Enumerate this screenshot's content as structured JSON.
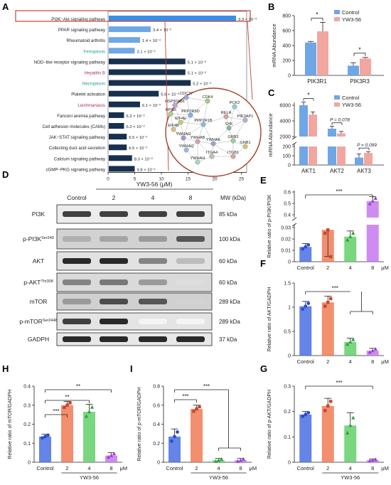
{
  "panels": {
    "A": "A",
    "B": "B",
    "C": "C",
    "D": "D",
    "E": "E",
    "F": "F",
    "G": "G",
    "H": "H",
    "I": "I"
  },
  "common": {
    "control": "Control",
    "drug": "YW3-56",
    "uM": "μM",
    "doses": [
      "2",
      "4",
      "8"
    ]
  },
  "colors": {
    "control": "#6fa6e6",
    "yw": "#f2a6a0",
    "d2": "#ee7b56",
    "d4": "#63d06a",
    "d8": "#c678f0",
    "dblue": "#4a6fe3",
    "navy": "#17304e",
    "bright": "#3a8ee8",
    "light": "#6fa6e6"
  },
  "panelA": {
    "chart_data": {
      "type": "bar",
      "orientation": "horizontal",
      "categories": [
        "PI3K−Akt signaling pathway",
        "PPAR signaling pathway",
        "Rheumatoid arthritis",
        "Ferroptosis",
        "NOD−like receptor signaling pathway",
        "Hepatitis B",
        "Necroptosis",
        "Platelet activation",
        "Leishmaniasis",
        "Fanconi anemia pathway",
        "Cell adhesion molecules (CAMs)",
        "JAK−STAT signaling pathway",
        "Collecting duct acid secretion",
        "Calcium signaling pathway",
        "cGMP−PKG signaling pathway"
      ],
      "values": [
        24,
        8,
        6,
        5,
        14.5,
        14.5,
        15.5,
        9.5,
        6,
        3,
        3,
        3.5,
        3.5,
        4.5,
        5
      ],
      "value_labels": [
        "3.3 × 10⁻³",
        "3.4 × 10⁻²",
        "1.4 × 10⁻²",
        "3.1 × 10⁻²",
        "5.1 × 10⁻²",
        "5.1 × 10⁻²",
        "5.2 × 10⁻²",
        "5.6 × 10⁻²",
        "6.1 × 10⁻²",
        "6.2 × 10⁻²",
        "6.2 × 10⁻²",
        "6.5 × 10⁻²",
        "6.5 × 10⁻²",
        "8.3 × 10⁻²",
        "9.8 × 10⁻²"
      ],
      "bar_colors": [
        "bright",
        "light",
        "light",
        "light",
        "navy",
        "navy",
        "navy",
        "navy",
        "navy",
        "navy",
        "navy",
        "navy",
        "navy",
        "navy",
        "navy"
      ],
      "label_colors": [
        "#222",
        "#222",
        "#222",
        "#1a9aa0",
        "#222",
        "#b0306a",
        "#1a9aa0",
        "#222",
        "#b0306a",
        "#222",
        "#222",
        "#222",
        "#222",
        "#222",
        "#222"
      ],
      "xticks": [
        0,
        5,
        10,
        15,
        20,
        25
      ],
      "xlim": [
        0,
        26
      ]
    },
    "network": [
      "CDC37",
      "CDK4",
      "HSP90AB1",
      "PCK2",
      "RPS6",
      "PPP2R5D",
      "RELA",
      "PIK3AP1",
      "EIF4E",
      "PPP2R1B",
      "EIF4B",
      "SYK",
      "YWHAG",
      "YWHAB",
      "GRB2",
      "YWHAE",
      "GNB1",
      "YWHAQ",
      "ITGA4",
      "ITGB1",
      "YWHAH"
    ]
  },
  "panelB": {
    "chart_data": {
      "type": "bar",
      "ylabel": "mRNA Abundance",
      "categories": [
        "PIK3R1",
        "PIK3R3"
      ],
      "series": [
        {
          "name": "Control",
          "values": [
            440,
            130
          ],
          "err": [
            15,
            40
          ]
        },
        {
          "name": "YW3-56",
          "values": [
            590,
            225
          ],
          "err": [
            120,
            15
          ]
        }
      ],
      "ylim": [
        0,
        800
      ],
      "yticks": [
        0,
        200,
        400,
        600,
        800
      ]
    },
    "sig": [
      "*",
      "*"
    ]
  },
  "panelC": {
    "chart_data": {
      "type": "bar",
      "ylabel": "mRNA Abundance",
      "categories": [
        "AKT1",
        "AKT2",
        "AKT3"
      ],
      "series": [
        {
          "name": "Control",
          "values": [
            6000,
            3000,
            80
          ],
          "err": [
            400,
            300,
            40
          ]
        },
        {
          "name": "YW3-56",
          "values": [
            4800,
            2400,
            130
          ],
          "err": [
            350,
            250,
            15
          ]
        }
      ],
      "yticks": [
        0,
        100,
        200,
        2000,
        4000,
        6000
      ]
    },
    "sig": [
      "*",
      "P = 0.078",
      "P = 0.099"
    ]
  },
  "panelD": {
    "header": "YW3-56 (μM)",
    "columns": [
      "Control",
      "2",
      "4",
      "8"
    ],
    "mw_header": "MW (kDa)",
    "rows": [
      {
        "label": "PI3K",
        "sup": "",
        "mw": "85 kDa",
        "bands": [
          0.85,
          0.85,
          0.85,
          0.85
        ],
        "bg": "#ececec"
      },
      {
        "label": "p-PI3K",
        "sup": "Ser249",
        "mw": "100 kDa",
        "bands": [
          0.35,
          0.4,
          0.45,
          0.75
        ],
        "bg": "#d2d2d2"
      },
      {
        "label": "AKT",
        "sup": "",
        "mw": "60 kDa",
        "bands": [
          0.95,
          0.95,
          0.55,
          0.3
        ],
        "bg": "#e2e2e2"
      },
      {
        "label": "p-AKT",
        "sup": "Thr308",
        "mw": "60 kDa",
        "bands": [
          0.55,
          0.6,
          0.45,
          0.15
        ],
        "bg": "#dadada"
      },
      {
        "label": "mTOR",
        "sup": "",
        "mw": "289 kDa",
        "bands": [
          0.45,
          0.8,
          0.75,
          0.2
        ],
        "bg": "#d0d0d0"
      },
      {
        "label": "p-mTOR",
        "sup": "Ser2448",
        "mw": "289 kDa",
        "bands": [
          0.85,
          0.95,
          0.05,
          0.05
        ],
        "bg": "#e4e4e4"
      },
      {
        "label": "GADPH",
        "sup": "",
        "mw": "37 kDa",
        "bands": [
          0.95,
          0.95,
          0.95,
          0.95
        ],
        "bg": "#e8e8e8"
      }
    ]
  },
  "panelE": {
    "chart_data": {
      "type": "bar",
      "ylabel": "Relative ratio of p-PI3K/PI3K",
      "values": [
        0.013,
        0.028,
        0.022,
        0.52
      ],
      "err": [
        0.003,
        0.005,
        0.005,
        0.04
      ],
      "yticks_low": [
        0,
        0.01,
        0.02,
        0.03
      ],
      "yticks_high": [
        0.4,
        0.5,
        0.6
      ]
    },
    "sig": "***"
  },
  "panelF": {
    "chart_data": {
      "type": "bar",
      "ylabel": "Relative ratio of AKT/GADPH",
      "values": [
        1.02,
        1.1,
        0.28,
        0.1
      ],
      "err": [
        0.1,
        0.13,
        0.08,
        0.05
      ],
      "ylim": [
        0,
        1.5
      ],
      "yticks": [
        0,
        0.5,
        1.0,
        1.5
      ]
    },
    "sig": "***"
  },
  "panelG": {
    "chart_data": {
      "type": "bar",
      "ylabel": "Relative ratio of p-AKT/GADPH",
      "values": [
        0.188,
        0.222,
        0.145,
        0.008
      ],
      "err": [
        0.012,
        0.03,
        0.05,
        0.005
      ],
      "ylim": [
        0,
        0.3
      ],
      "yticks": [
        0,
        0.1,
        0.2,
        0.3
      ]
    },
    "sig": "***"
  },
  "panelH": {
    "chart_data": {
      "type": "bar",
      "ylabel": "Relative ratio of mTOR/GADPH",
      "values": [
        0.135,
        0.3,
        0.265,
        0.035
      ],
      "err": [
        0.012,
        0.02,
        0.04,
        0.015
      ],
      "ylim": [
        0,
        0.4
      ],
      "yticks": [
        0,
        0.1,
        0.2,
        0.3,
        0.4
      ]
    },
    "sig": [
      "***",
      "**",
      "**"
    ]
  },
  "panelI": {
    "chart_data": {
      "type": "bar",
      "ylabel": "Relative ratio of p-mTOR/GADPH",
      "values": [
        0.27,
        0.56,
        0.02,
        0.02
      ],
      "err": [
        0.08,
        0.04,
        0.02,
        0.02
      ],
      "ylim": [
        0,
        0.8
      ],
      "yticks": [
        0,
        0.2,
        0.4,
        0.6,
        0.8
      ]
    },
    "sig": [
      "***",
      "***"
    ]
  }
}
